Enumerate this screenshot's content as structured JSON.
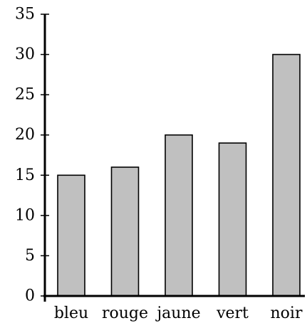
{
  "chart_data": {
    "type": "bar",
    "categories": [
      "bleu",
      "rouge",
      "jaune",
      "vert",
      "noir"
    ],
    "values": [
      15,
      16,
      20,
      19,
      30
    ],
    "title": "",
    "xlabel": "",
    "ylabel": "",
    "ylim": [
      0,
      35
    ],
    "yticks": [
      0,
      5,
      10,
      15,
      20,
      25,
      30,
      35
    ],
    "grid": false,
    "bar_color": "#c0c0c0",
    "bar_edge_color": "#000000"
  }
}
